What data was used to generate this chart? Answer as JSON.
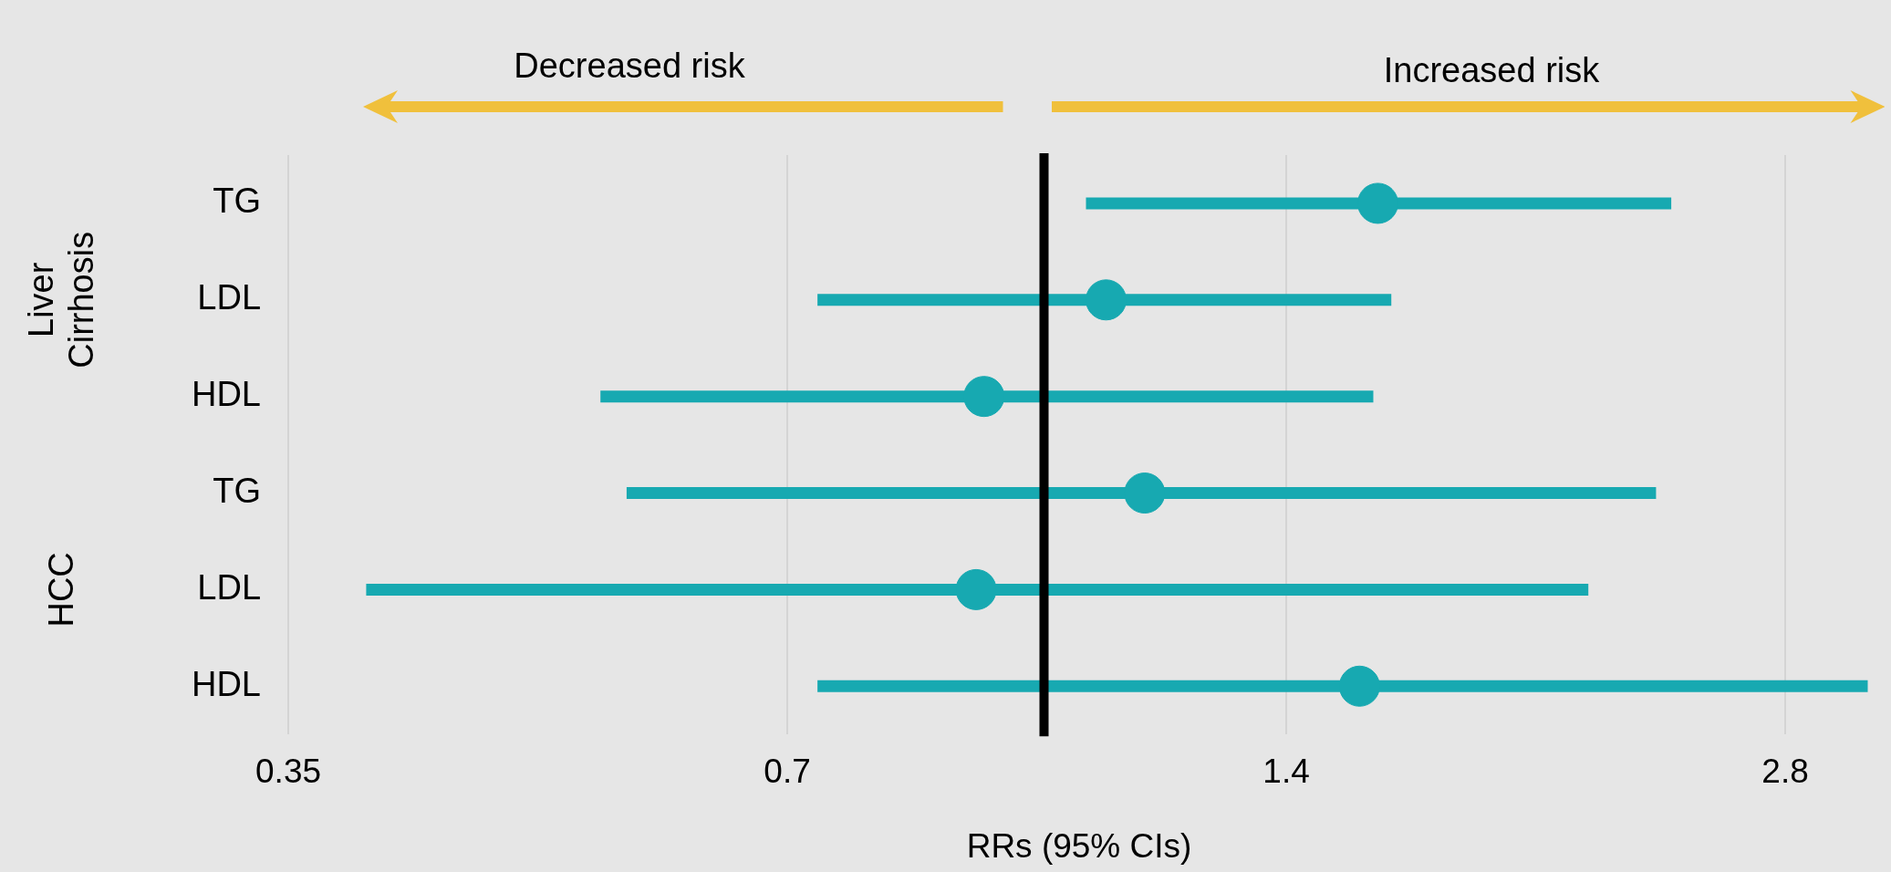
{
  "chart_data": {
    "type": "scatter",
    "orientation": "horizontal",
    "xlabel": "RRs (95% CIs)",
    "categories": [
      "TG",
      "LDL",
      "HDL",
      "TG",
      "LDL",
      "HDL"
    ],
    "series": [
      {
        "color": "#17a9b1",
        "values": [
          1.59,
          1.09,
          0.92,
          1.15,
          0.91,
          1.55
        ],
        "errors": [
          [
            1.06,
            2.39
          ],
          [
            0.73,
            1.62
          ],
          [
            0.54,
            1.58
          ],
          [
            0.56,
            2.34
          ],
          [
            0.39,
            2.13
          ],
          [
            0.73,
            3.14
          ]
        ]
      }
    ],
    "xlim": [
      0.35,
      3.15
    ],
    "xticks": [
      0.35,
      0.7,
      1.4,
      2.8
    ],
    "log": "x",
    "grid": "x",
    "legend": false,
    "marker": "circle",
    "ref_lines": [
      {
        "axis": "x",
        "value": 1,
        "color": "#000000"
      }
    ],
    "annotations": [
      "Decreased risk",
      "Increased risk",
      "Liver Cirrhosis",
      "HCC"
    ]
  }
}
